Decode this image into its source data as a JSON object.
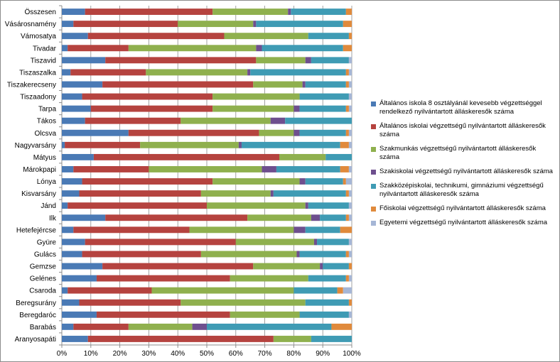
{
  "chart_data": {
    "type": "stacked-bar-100",
    "orientation": "horizontal",
    "title": "",
    "categories": [
      "Összesen",
      "Vásárosnamény",
      "Vámosatya",
      "Tivadar",
      "Tiszavid",
      "Tiszaszalka",
      "Tiszakerecseny",
      "Tiszaadony",
      "Tarpa",
      "Tákos",
      "Olcsva",
      "Nagyvarsány",
      "Mátyus",
      "Márokpapi",
      "Lónya",
      "Kisvarsány",
      "Jánd",
      "Ilk",
      "Hetefejércse",
      "Gyüre",
      "Gulács",
      "Gemzse",
      "Gelénes",
      "Csaroda",
      "Beregsurány",
      "Beregdaróc",
      "Barabás",
      "Aranyosapáti"
    ],
    "x_ticks": [
      "0%",
      "10%",
      "20%",
      "30%",
      "40%",
      "50%",
      "60%",
      "70%",
      "80%",
      "90%",
      "100%"
    ],
    "xlim": [
      0,
      100
    ],
    "legend_position": "right",
    "series": [
      {
        "name": "Általános iskola 8 osztályánál kevesebb végzettséggel rendelkező nyilvántartott álláskeresők száma",
        "color": "#4a7ab5",
        "values": [
          8,
          4,
          9,
          2,
          15,
          3,
          14,
          7,
          10,
          8,
          23,
          1,
          11,
          4,
          7,
          6,
          2,
          15,
          4,
          8,
          7,
          14,
          12,
          2,
          6,
          12,
          4,
          9
        ]
      },
      {
        "name": "Általános iskolai végzettségű nyilvántartott álláskeresők száma",
        "color": "#b5433f",
        "values": [
          44,
          36,
          47,
          21,
          52,
          26,
          52,
          45,
          42,
          33,
          45,
          26,
          64,
          26,
          45,
          42,
          48,
          49,
          40,
          52,
          41,
          52,
          46,
          29,
          35,
          46,
          19,
          64
        ]
      },
      {
        "name": "Szakmunkás végzettségű nyilvántartott álláskeresők száma",
        "color": "#8fb04e",
        "values": [
          26,
          26,
          29,
          44,
          17,
          35,
          17,
          30,
          28,
          31,
          12,
          34,
          16,
          39,
          30,
          24,
          34,
          22,
          36,
          27,
          33,
          23,
          27,
          49,
          43,
          24,
          22,
          13
        ]
      },
      {
        "name": "Szakiskolai végzettségű nyilvántartott álláskeresők száma",
        "color": "#6e4f8e",
        "values": [
          1,
          1,
          0,
          2,
          2,
          1,
          1,
          0,
          2,
          5,
          2,
          1,
          0,
          5,
          2,
          1,
          1,
          3,
          4,
          1,
          1,
          1,
          0,
          0,
          0,
          0,
          5,
          0
        ]
      },
      {
        "name": "Szakközépiskolai, technikumi, gimnáziumi végzettségű nyilvántartott álláskeresők száma",
        "color": "#3f9bb4",
        "values": [
          19,
          30,
          14,
          28,
          13,
          33,
          14,
          17,
          16,
          23,
          16,
          34,
          9,
          22,
          13,
          25,
          14,
          9,
          12,
          11,
          16,
          9,
          13,
          15,
          15,
          17,
          43,
          14
        ]
      },
      {
        "name": "Főiskolai végzettségű nyilvántartott álláskeresők száma",
        "color": "#e08a3c",
        "values": [
          2,
          3,
          1,
          3,
          0,
          1,
          1,
          0,
          1,
          0,
          1,
          3,
          0,
          3,
          1,
          1,
          0,
          1,
          4,
          0,
          1,
          1,
          1,
          2,
          1,
          0,
          7,
          0
        ]
      },
      {
        "name": "Egyetemi végzettségű nyilvántartott álláskeresők száma",
        "color": "#a5b6d6",
        "values": [
          0,
          0,
          0,
          0,
          1,
          1,
          1,
          1,
          1,
          0,
          1,
          1,
          0,
          1,
          2,
          1,
          1,
          1,
          0,
          1,
          1,
          0,
          1,
          3,
          0,
          1,
          0,
          0
        ]
      }
    ]
  }
}
